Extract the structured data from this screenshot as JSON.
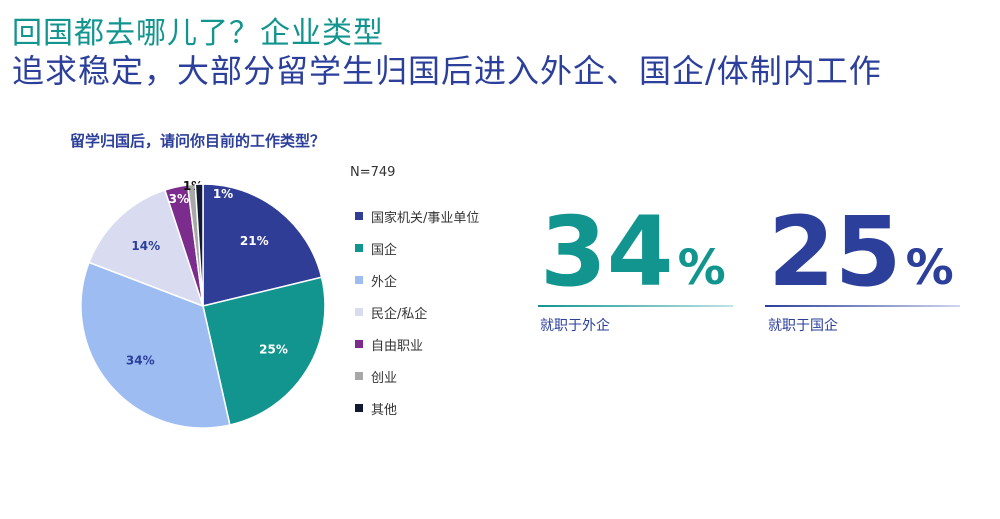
{
  "header": {
    "title": "回国都去哪儿了？企业类型",
    "subtitle": "追求稳定，大部分留学生归国后进入外企、国企/体制内工作"
  },
  "chart_data": {
    "type": "pie",
    "title": "留学归国后，请问你目前的工作类型？",
    "n_label": "N=749",
    "legend_position": "right",
    "slices": [
      {
        "label": "国家机关/事业单位",
        "value": 21,
        "value_label": "21%",
        "color": "#2f3d96"
      },
      {
        "label": "国企",
        "value": 25,
        "value_label": "25%",
        "color": "#12958f"
      },
      {
        "label": "外企",
        "value": 34,
        "value_label": "34%",
        "color": "#9dbdf2"
      },
      {
        "label": "民企/私企",
        "value": 14,
        "value_label": "14%",
        "color": "#d9dcf1"
      },
      {
        "label": "自由职业",
        "value": 3,
        "value_label": "3%",
        "color": "#7b2c8c"
      },
      {
        "label": "创业",
        "value": 1,
        "value_label": "1%",
        "color": "#a8a8a8"
      },
      {
        "label": "其他",
        "value": 1,
        "value_label": "1%",
        "color": "#111a33"
      }
    ]
  },
  "highlights": [
    {
      "number": "34",
      "unit": "%",
      "caption": "就职于外企",
      "color": "#12958f"
    },
    {
      "number": "25",
      "unit": "%",
      "caption": "就职于国企",
      "color": "#2b3f9b"
    }
  ]
}
